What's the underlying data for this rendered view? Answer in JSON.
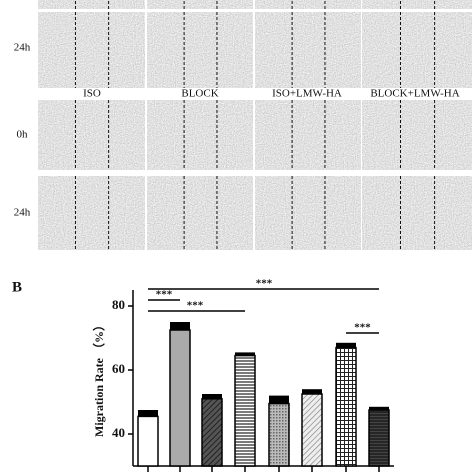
{
  "images": {
    "column_labels": [
      "ISO",
      "BLOCK",
      "ISO+LMW-HA",
      "BLOCK+LMW-HA"
    ],
    "row_labels": [
      "24h",
      "0h",
      "24h"
    ]
  },
  "panel_label": "B",
  "chart_data": {
    "type": "bar",
    "ylabel": "Migration Rate （%）",
    "categories": [
      null,
      null,
      null,
      null,
      null,
      null,
      null,
      null
    ],
    "values": [
      45.5,
      72.5,
      51,
      64.5,
      49.5,
      52.5,
      67,
      47.5
    ],
    "errors": [
      2,
      2.5,
      1.5,
      1,
      2.5,
      1.5,
      1.5,
      1
    ],
    "ylim": [
      30,
      85
    ],
    "yticks": [
      40,
      60,
      80
    ],
    "annotations": [
      "***",
      "***",
      "***",
      "***"
    ]
  }
}
